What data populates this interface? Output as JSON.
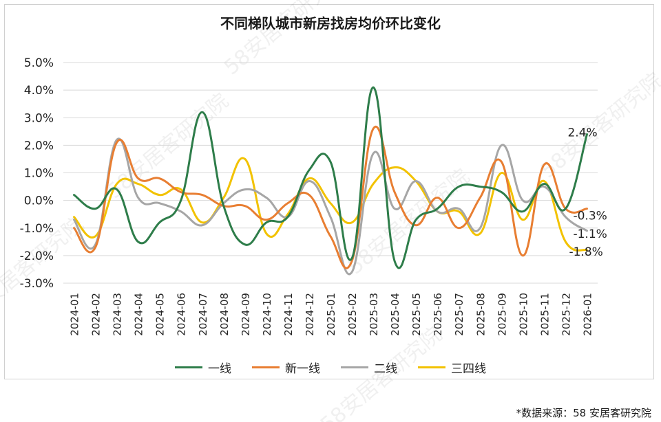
{
  "title": "不同梯队城市新房找房均价环比变化",
  "source": "*数据来源：58 安居客研究院",
  "watermark": "58安居客研究院",
  "chart_data": {
    "type": "line",
    "title": "不同梯队城市新房找房均价环比变化",
    "categories": [
      "2024-01",
      "2024-02",
      "2024-03",
      "2024-04",
      "2024-05",
      "2024-06",
      "2024-07",
      "2024-08",
      "2024-09",
      "2024-10",
      "2024-11",
      "2024-12",
      "2025-01",
      "2025-02",
      "2025-03",
      "2025-04",
      "2025-05",
      "2025-06",
      "2025-07",
      "2025-08",
      "2025-09",
      "2025-10",
      "2025-11",
      "2025-12",
      "2026-01"
    ],
    "y_ticks": [
      "5.0%",
      "4.0%",
      "3.0%",
      "2.0%",
      "1.0%",
      "0.0%",
      "-1.0%",
      "-2.0%",
      "-3.0%"
    ],
    "ylim": [
      -3.0,
      5.0
    ],
    "y_unit": "%",
    "grid": true,
    "legend_position": "bottom",
    "series": [
      {
        "name": "一线",
        "color": "#2e7d4a",
        "values": [
          0.2,
          -0.3,
          0.4,
          -1.5,
          -0.8,
          0.0,
          3.2,
          -0.2,
          -1.6,
          -0.8,
          -0.6,
          1.1,
          1.4,
          -2.1,
          4.1,
          -2.2,
          -0.7,
          -0.3,
          0.5,
          0.5,
          0.3,
          -0.4,
          0.6,
          -0.3,
          2.4
        ]
      },
      {
        "name": "新一线",
        "color": "#e87e32",
        "values": [
          -1.0,
          -1.7,
          2.1,
          0.8,
          0.8,
          0.3,
          0.2,
          -0.2,
          -0.2,
          -0.7,
          -0.1,
          0.2,
          -1.3,
          -2.2,
          2.6,
          0.3,
          -0.9,
          0.1,
          -1.0,
          0.1,
          1.4,
          -2.0,
          1.3,
          -0.3,
          -0.3
        ]
      },
      {
        "name": "二线",
        "color": "#a6a6a6",
        "values": [
          -0.7,
          -1.6,
          2.2,
          0.1,
          -0.1,
          -0.4,
          -0.9,
          -0.1,
          0.4,
          0.1,
          -0.6,
          0.7,
          -0.6,
          -2.6,
          1.7,
          -0.3,
          0.7,
          -0.4,
          -0.3,
          -1.0,
          2.0,
          0.0,
          0.5,
          -0.6,
          -1.1
        ]
      },
      {
        "name": "三四线",
        "color": "#f2c200",
        "values": [
          -0.6,
          -1.3,
          0.6,
          0.6,
          0.2,
          0.4,
          -0.8,
          0.1,
          1.5,
          -1.2,
          -0.5,
          0.8,
          -0.1,
          -0.8,
          0.6,
          1.2,
          0.7,
          -0.4,
          -0.4,
          -1.2,
          1.0,
          -0.7,
          0.7,
          -1.5,
          -1.8
        ]
      }
    ],
    "end_labels": [
      "2.4%",
      "-0.3%",
      "-1.1%",
      "-1.8%"
    ]
  }
}
